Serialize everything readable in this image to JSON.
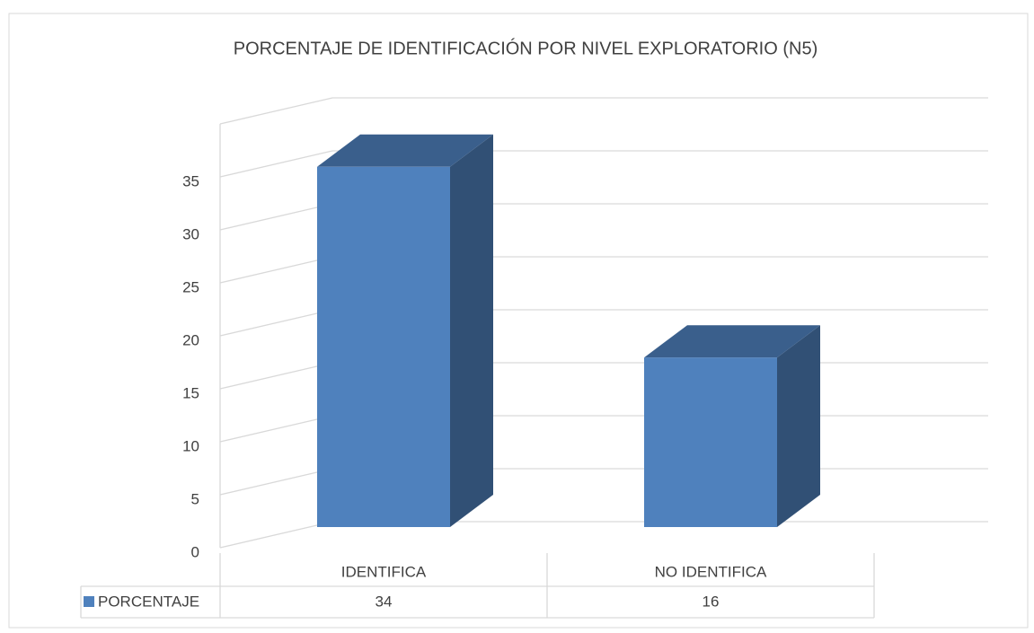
{
  "chart_data": {
    "type": "bar3d",
    "title": "PORCENTAJE DE IDENTIFICACIÓN POR NIVEL EXPLORATORIO (N5)",
    "categories": [
      "IDENTIFICA",
      "NO IDENTIFICA"
    ],
    "series": [
      {
        "name": "PORCENTAJE",
        "color": "#4f81bd",
        "values": [
          34,
          16
        ]
      }
    ],
    "ylim": [
      0,
      40
    ],
    "yticks": [
      0,
      5,
      10,
      15,
      20,
      25,
      30,
      35
    ],
    "grid": true,
    "legend": "bottom-left"
  }
}
